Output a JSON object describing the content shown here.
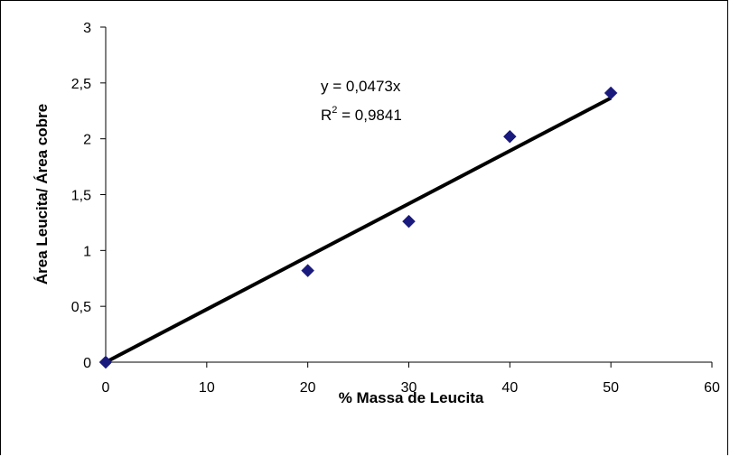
{
  "chart_data": {
    "type": "scatter",
    "title": "",
    "xlabel": "% Massa de Leucita",
    "ylabel": "Área Leucita/ Área cobre",
    "xlim": [
      0,
      60
    ],
    "ylim": [
      0,
      3
    ],
    "x_ticks": [
      0,
      10,
      20,
      30,
      40,
      50,
      60
    ],
    "y_ticks": [
      0,
      0.5,
      1,
      1.5,
      2,
      2.5,
      3
    ],
    "x_tick_labels": [
      "0",
      "10",
      "20",
      "30",
      "40",
      "50",
      "60"
    ],
    "y_tick_labels": [
      "0",
      "0,5",
      "1",
      "1,5",
      "2",
      "2,5",
      "3"
    ],
    "grid": false,
    "legend": "none",
    "series": [
      {
        "x": [
          0,
          20,
          30,
          40,
          50
        ],
        "y": [
          0,
          0.82,
          1.26,
          2.02,
          2.41
        ],
        "marker": "diamond",
        "color": "#1a1a7e"
      }
    ],
    "trendline": {
      "type": "linear",
      "slope": 0.0473,
      "intercept": 0,
      "x_range": [
        0,
        50
      ],
      "color": "#000000"
    },
    "annotations": {
      "equation": "y = 0,0473x",
      "r2_prefix": "R",
      "r2_sup": "2",
      "r2_suffix": " = 0,9841"
    }
  }
}
